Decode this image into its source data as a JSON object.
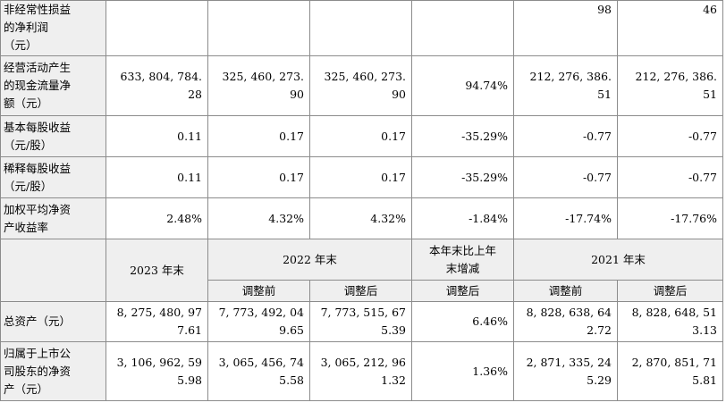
{
  "rows_top": [
    {
      "label": "非经常性损益\n的净利润\n（元）",
      "values": [
        "",
        "",
        "",
        "",
        "98",
        "46"
      ]
    },
    {
      "label": "经营活动产生\n的现金流量净\n额（元）",
      "values": [
        "633, 804, 784.\n28",
        "325, 460, 273.\n90",
        "325, 460, 273.\n90",
        "94.74%",
        "212, 276, 386.\n51",
        "212, 276, 386.\n51"
      ]
    },
    {
      "label": "基本每股收益\n（元/股）",
      "values": [
        "0.11",
        "0.17",
        "0.17",
        "-35.29%",
        "-0.77",
        "-0.77"
      ]
    },
    {
      "label": "稀释每股收益\n（元/股）",
      "values": [
        "0.11",
        "0.17",
        "0.17",
        "-35.29%",
        "-0.77",
        "-0.77"
      ]
    },
    {
      "label": "加权平均净资\n产收益率",
      "values": [
        "2.48%",
        "4.32%",
        "4.32%",
        "-1.84%",
        "-17.74%",
        "-17.76%"
      ]
    }
  ],
  "header": {
    "col_2023": "2023 年末",
    "col_2022": "2022 年末",
    "col_change": "本年末比上年\n末增减",
    "col_2021": "2021 年末",
    "sub_before_2022": "调整前",
    "sub_after_2022": "调整后",
    "sub_after_change": "调整后",
    "sub_before_2021": "调整前",
    "sub_after_2021": "调整后"
  },
  "rows_bottom": [
    {
      "label": "总资产（元）",
      "values": [
        "8, 275, 480, 97\n7.61",
        "7, 773, 492, 04\n9.65",
        "7, 773, 515, 67\n5.39",
        "6.46%",
        "8, 828, 638, 64\n2.72",
        "8, 828, 648, 51\n3.13"
      ]
    },
    {
      "label": "归属于上市公\n司股东的净资\n产（元）",
      "values": [
        "3, 106, 962, 59\n5.98",
        "3, 065, 456, 74\n5.58",
        "3, 065, 212, 96\n1.32",
        "1.36%",
        "2, 871, 335, 24\n5.29",
        "2, 870, 851, 71\n5.81"
      ]
    }
  ]
}
